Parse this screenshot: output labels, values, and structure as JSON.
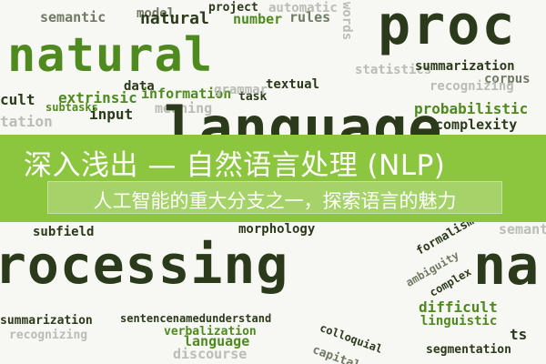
{
  "banner": {
    "title": "深入浅出 — 自然语言处理 (NLP)",
    "subtitle": "人工智能的重大分支之一，探索语言的魅力",
    "colors": {
      "banner": "#8cc63f",
      "text": "#ffffff"
    }
  },
  "word_cloud": {
    "words": [
      "semantic",
      "model",
      "natural",
      "project",
      "automatic",
      "number",
      "rules",
      "words",
      "proc",
      "natural",
      "data",
      "information",
      "textual",
      "task",
      "extrinsic",
      "meaning",
      "grammar",
      "input",
      "subtasks",
      "cult",
      "tation",
      "statistics",
      "summarization",
      "corpus",
      "recognizing",
      "probabilistic",
      "complexity",
      "language",
      "subfield",
      "morphology",
      "formalism",
      "ambiguity",
      "complex",
      "semant",
      "rocessing",
      "na",
      "difficult",
      "linguistic",
      "summarization",
      "sentencenamedunderstand",
      "verbalization",
      "language",
      "discourse",
      "recognizing",
      "colloquial",
      "capital",
      "segmentation",
      "ts"
    ]
  }
}
